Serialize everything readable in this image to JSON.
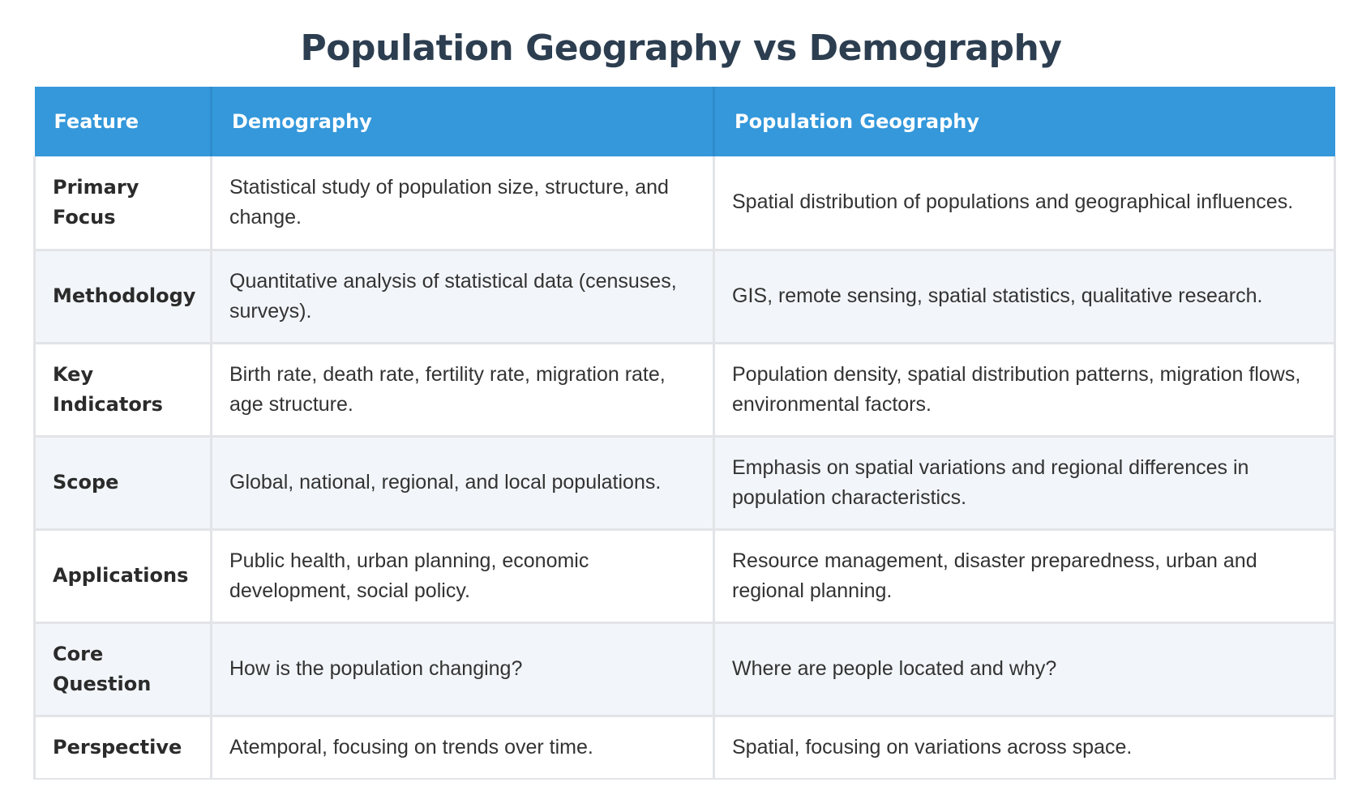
{
  "title": "Population Geography vs Demography",
  "table": {
    "headers": [
      "Feature",
      "Demography",
      "Population Geography"
    ],
    "rows": [
      {
        "feature": "Primary Focus",
        "demography": "Statistical study of population size, structure, and change.",
        "population_geography": "Spatial distribution of populations and geographical influences."
      },
      {
        "feature": "Methodology",
        "demography": "Quantitative analysis of statistical data (censuses, surveys).",
        "population_geography": "GIS, remote sensing, spatial statistics, qualitative research."
      },
      {
        "feature": "Key Indicators",
        "demography": "Birth rate, death rate, fertility rate, migration rate, age structure.",
        "population_geography": "Population density, spatial distribution patterns, migration flows, environmental factors."
      },
      {
        "feature": "Scope",
        "demography": "Global, national, regional, and local populations.",
        "population_geography": "Emphasis on spatial variations and regional differences in population characteristics."
      },
      {
        "feature": "Applications",
        "demography": "Public health, urban planning, economic development, social policy.",
        "population_geography": "Resource management, disaster preparedness, urban and regional planning."
      },
      {
        "feature": "Core Question",
        "demography": "How is the population changing?",
        "population_geography": "Where are people located and why?"
      },
      {
        "feature": "Perspective",
        "demography": "Atemporal, focusing on trends over time.",
        "population_geography": "Spatial, focusing on variations across space."
      }
    ]
  },
  "colors": {
    "title": "#2c3e50",
    "header_bg": "#3498db",
    "header_text": "#ffffff",
    "alt_row_bg": "#f2f5f9",
    "border": "#e2e4e7",
    "body_text": "#333333"
  }
}
